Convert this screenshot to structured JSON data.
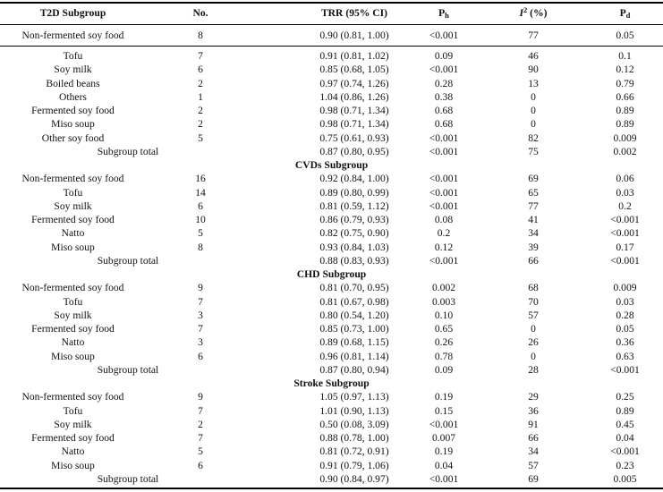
{
  "header": {
    "subgroup": "T2D Subgroup",
    "no": "No.",
    "trr": "TRR (95% CI)",
    "ph_base": "P",
    "ph_sub": "h",
    "i2_base": "I",
    "i2_sup": "2",
    "i2_unit": " (%)",
    "pd_base": "P",
    "pd_sub": "d"
  },
  "first_row": {
    "name": "Non-fermented soy food",
    "no": "8",
    "trr": "0.90 (0.81, 1.00)",
    "ph": "<0.001",
    "i2": "77",
    "pd": "0.05"
  },
  "t2d_rows": [
    {
      "name": "Tofu",
      "no": "7",
      "trr": "0.91 (0.81, 1.02)",
      "ph": "0.09",
      "i2": "46",
      "pd": "0.1"
    },
    {
      "name": "Soy milk",
      "no": "6",
      "trr": "0.85 (0.68, 1.05)",
      "ph": "<0.001",
      "i2": "90",
      "pd": "0.12"
    },
    {
      "name": "Boiled beans",
      "no": "2",
      "trr": "0.97 (0.74, 1.26)",
      "ph": "0.28",
      "i2": "13",
      "pd": "0.79"
    },
    {
      "name": "Others",
      "no": "1",
      "trr": "1.04 (0.86, 1.26)",
      "ph": "0.38",
      "i2": "0",
      "pd": "0.66"
    },
    {
      "name": "Fermented soy food",
      "no": "2",
      "trr": "0.98 (0.71, 1.34)",
      "ph": "0.68",
      "i2": "0",
      "pd": "0.89"
    },
    {
      "name": "Miso soup",
      "no": "2",
      "trr": "0.98 (0.71, 1.34)",
      "ph": "0.68",
      "i2": "0",
      "pd": "0.89"
    },
    {
      "name": "Other soy food",
      "no": "5",
      "trr": "0.75 (0.61, 0.93)",
      "ph": "<0.001",
      "i2": "82",
      "pd": "0.009"
    },
    {
      "name": "Subgroup total",
      "no": "",
      "trr": "0.87 (0.80, 0.95)",
      "ph": "<0.001",
      "i2": "75",
      "pd": "0.002",
      "total": true
    }
  ],
  "groups": [
    {
      "title": "CVDs Subgroup",
      "rows": [
        {
          "name": "Non-fermented soy food",
          "no": "16",
          "trr": "0.92 (0.84, 1.00)",
          "ph": "<0.001",
          "i2": "69",
          "pd": "0.06"
        },
        {
          "name": "Tofu",
          "no": "14",
          "trr": "0.89 (0.80, 0.99)",
          "ph": "<0.001",
          "i2": "65",
          "pd": "0.03"
        },
        {
          "name": "Soy milk",
          "no": "6",
          "trr": "0.81 (0.59, 1.12)",
          "ph": "<0.001",
          "i2": "77",
          "pd": "0.2"
        },
        {
          "name": "Fermented soy food",
          "no": "10",
          "trr": "0.86 (0.79, 0.93)",
          "ph": "0.08",
          "i2": "41",
          "pd": "<0.001"
        },
        {
          "name": "Natto",
          "no": "5",
          "trr": "0.82 (0.75, 0.90)",
          "ph": "0.2",
          "i2": "34",
          "pd": "<0.001"
        },
        {
          "name": "Miso soup",
          "no": "8",
          "trr": "0.93 (0.84, 1.03)",
          "ph": "0.12",
          "i2": "39",
          "pd": "0.17"
        },
        {
          "name": "Subgroup total",
          "no": "",
          "trr": "0.88 (0.83, 0.93)",
          "ph": "<0.001",
          "i2": "66",
          "pd": "<0.001",
          "total": true
        }
      ]
    },
    {
      "title": "CHD Subgroup",
      "rows": [
        {
          "name": "Non-fermented soy food",
          "no": "9",
          "trr": "0.81 (0.70, 0.95)",
          "ph": "0.002",
          "i2": "68",
          "pd": "0.009"
        },
        {
          "name": "Tofu",
          "no": "7",
          "trr": "0.81 (0.67, 0.98)",
          "ph": "0.003",
          "i2": "70",
          "pd": "0.03"
        },
        {
          "name": "Soy milk",
          "no": "3",
          "trr": "0.80 (0.54, 1.20)",
          "ph": "0.10",
          "i2": "57",
          "pd": "0.28"
        },
        {
          "name": "Fermented soy food",
          "no": "7",
          "trr": "0.85 (0.73, 1.00)",
          "ph": "0.65",
          "i2": "0",
          "pd": "0.05"
        },
        {
          "name": "Natto",
          "no": "3",
          "trr": "0.89 (0.68, 1.15)",
          "ph": "0.26",
          "i2": "26",
          "pd": "0.36"
        },
        {
          "name": "Miso soup",
          "no": "6",
          "trr": "0.96 (0.81, 1.14)",
          "ph": "0.78",
          "i2": "0",
          "pd": "0.63"
        },
        {
          "name": "Subgroup total",
          "no": "",
          "trr": "0.87 (0.80, 0.94)",
          "ph": "0.09",
          "i2": "28",
          "pd": "<0.001",
          "total": true
        }
      ]
    },
    {
      "title": "Stroke Subgroup",
      "rows": [
        {
          "name": "Non-fermented soy food",
          "no": "9",
          "trr": "1.05 (0.97, 1.13)",
          "ph": "0.19",
          "i2": "29",
          "pd": "0.25"
        },
        {
          "name": "Tofu",
          "no": "7",
          "trr": "1.01 (0.90, 1.13)",
          "ph": "0.15",
          "i2": "36",
          "pd": "0.89"
        },
        {
          "name": "Soy milk",
          "no": "2",
          "trr": "0.50 (0.08, 3.09)",
          "ph": "<0.001",
          "i2": "91",
          "pd": "0.45"
        },
        {
          "name": "Fermented soy food",
          "no": "7",
          "trr": "0.88 (0.78, 1.00)",
          "ph": "0.007",
          "i2": "66",
          "pd": "0.04"
        },
        {
          "name": "Natto",
          "no": "5",
          "trr": "0.81 (0.72, 0.91)",
          "ph": "0.19",
          "i2": "34",
          "pd": "<0.001"
        },
        {
          "name": "Miso soup",
          "no": "6",
          "trr": "0.91 (0.79, 1.06)",
          "ph": "0.04",
          "i2": "57",
          "pd": "0.23"
        },
        {
          "name": "Subgroup total",
          "no": "",
          "trr": "0.90 (0.84, 0.97)",
          "ph": "<0.001",
          "i2": "69",
          "pd": "0.005",
          "total": true
        }
      ]
    }
  ]
}
